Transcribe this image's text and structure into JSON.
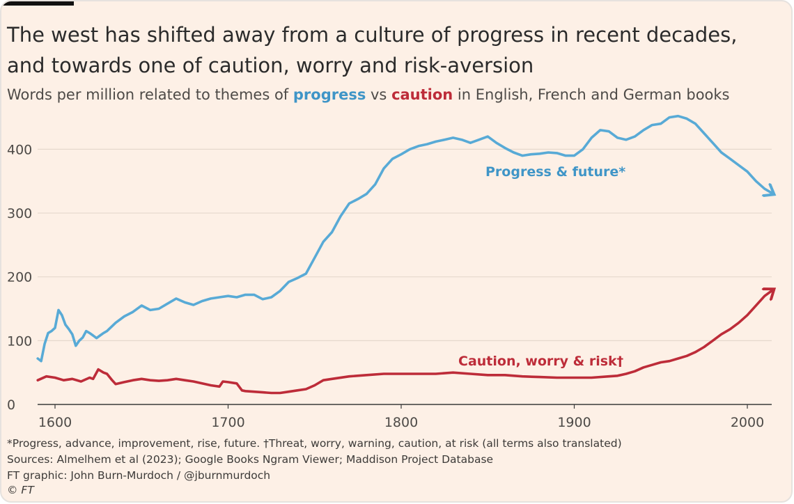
{
  "title": "The west has shifted away from a culture of progress in recent decades, and towards one of caution, worry and risk-aversion",
  "subtitle": {
    "prefix": "Words per million related to themes of ",
    "progress_word": "progress",
    "middle": " vs ",
    "caution_word": "caution",
    "suffix": " in English, French and German books"
  },
  "footnotes": {
    "definitions": "*Progress, advance, improvement, rise, future. †Threat, worry, warning, caution, at risk (all terms also translated)",
    "sources": "Sources: Almelhem et al (2023); Google Books Ngram Viewer; Maddison Project Database",
    "credit": "FT graphic: John Burn-Murdoch / @jburnmurdoch",
    "copyright": "© FT"
  },
  "colors": {
    "progress": "#58aad6",
    "caution": "#bd2c39",
    "progress_label": "#3f95c7",
    "grid": "#e5d8cd",
    "axis_text": "#4d4a47"
  },
  "chart_data": {
    "type": "line",
    "xlim": [
      1595,
      2015
    ],
    "ylim": [
      0,
      450
    ],
    "x_ticks": [
      1600,
      1700,
      1800,
      1900,
      2000
    ],
    "y_ticks": [
      0,
      100,
      200,
      300,
      400
    ],
    "grid": true,
    "series": [
      {
        "name": "Progress & future*",
        "label": "Progress & future*",
        "color": "#58aad6",
        "x": [
          1590,
          1592,
          1594,
          1596,
          1598,
          1600,
          1602,
          1604,
          1606,
          1608,
          1610,
          1612,
          1614,
          1616,
          1618,
          1620,
          1622,
          1624,
          1626,
          1628,
          1630,
          1635,
          1640,
          1645,
          1650,
          1655,
          1660,
          1665,
          1670,
          1675,
          1680,
          1685,
          1690,
          1695,
          1700,
          1705,
          1710,
          1715,
          1720,
          1725,
          1730,
          1735,
          1740,
          1745,
          1750,
          1755,
          1760,
          1765,
          1770,
          1775,
          1780,
          1785,
          1790,
          1795,
          1800,
          1805,
          1810,
          1815,
          1820,
          1825,
          1830,
          1835,
          1840,
          1845,
          1850,
          1855,
          1860,
          1865,
          1870,
          1875,
          1880,
          1885,
          1890,
          1895,
          1900,
          1905,
          1910,
          1915,
          1920,
          1925,
          1930,
          1935,
          1940,
          1945,
          1950,
          1955,
          1960,
          1965,
          1970,
          1975,
          1980,
          1985,
          1990,
          1995,
          2000,
          2005,
          2010,
          2015
        ],
        "y": [
          72,
          68,
          95,
          112,
          115,
          120,
          148,
          140,
          125,
          118,
          110,
          92,
          100,
          105,
          115,
          112,
          108,
          104,
          108,
          112,
          115,
          128,
          138,
          145,
          155,
          148,
          150,
          158,
          166,
          160,
          156,
          162,
          166,
          168,
          170,
          168,
          172,
          172,
          165,
          168,
          178,
          192,
          198,
          205,
          230,
          255,
          270,
          295,
          315,
          322,
          330,
          345,
          370,
          385,
          392,
          400,
          405,
          408,
          412,
          415,
          418,
          415,
          410,
          415,
          420,
          410,
          402,
          395,
          390,
          392,
          393,
          395,
          394,
          390,
          390,
          400,
          418,
          430,
          428,
          418,
          415,
          420,
          430,
          438,
          440,
          450,
          452,
          448,
          440,
          425,
          410,
          395,
          385,
          375,
          365,
          350,
          338,
          330
        ]
      },
      {
        "name": "Caution, worry & risk†",
        "label": "Caution, worry & risk†",
        "color": "#bd2c39",
        "x": [
          1590,
          1595,
          1600,
          1605,
          1610,
          1615,
          1620,
          1622,
          1625,
          1628,
          1630,
          1633,
          1635,
          1640,
          1645,
          1650,
          1655,
          1660,
          1665,
          1670,
          1675,
          1680,
          1685,
          1690,
          1695,
          1697,
          1700,
          1705,
          1708,
          1710,
          1715,
          1720,
          1725,
          1730,
          1735,
          1740,
          1745,
          1750,
          1755,
          1760,
          1770,
          1780,
          1790,
          1800,
          1810,
          1820,
          1830,
          1840,
          1850,
          1860,
          1870,
          1880,
          1890,
          1900,
          1910,
          1920,
          1925,
          1930,
          1935,
          1940,
          1945,
          1950,
          1955,
          1960,
          1965,
          1970,
          1975,
          1980,
          1985,
          1990,
          1995,
          2000,
          2005,
          2010,
          2015
        ],
        "y": [
          38,
          44,
          42,
          38,
          40,
          36,
          42,
          40,
          55,
          50,
          48,
          38,
          32,
          35,
          38,
          40,
          38,
          37,
          38,
          40,
          38,
          36,
          33,
          30,
          28,
          36,
          35,
          33,
          22,
          21,
          20,
          19,
          18,
          18,
          20,
          22,
          24,
          30,
          38,
          40,
          44,
          46,
          48,
          48,
          48,
          48,
          50,
          48,
          46,
          46,
          44,
          43,
          42,
          42,
          42,
          44,
          45,
          48,
          52,
          58,
          62,
          66,
          68,
          72,
          76,
          82,
          90,
          100,
          110,
          118,
          128,
          140,
          155,
          170,
          180
        ]
      }
    ]
  }
}
